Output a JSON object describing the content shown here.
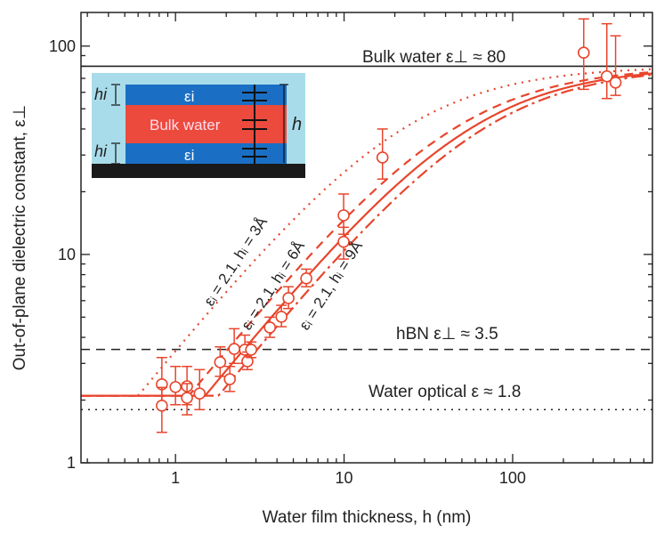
{
  "chart_data": {
    "type": "scatter",
    "xlabel": "Water film thickness, h (nm)",
    "ylabel": "Out-of-plane dielectric constant, ε⊥",
    "xscale": "log",
    "yscale": "log",
    "xlim": [
      0.275,
      675
    ],
    "ylim": [
      1,
      145
    ],
    "xticks": [
      {
        "v": 1,
        "label": "1"
      },
      {
        "v": 10,
        "label": "10"
      },
      {
        "v": 100,
        "label": "100"
      }
    ],
    "yticks": [
      {
        "v": 1,
        "label": "1"
      },
      {
        "v": 10,
        "label": "10"
      },
      {
        "v": 100,
        "label": "100"
      }
    ],
    "color": "#e8452c",
    "points": [
      {
        "x": 0.83,
        "y": 2.38,
        "err": [
          1.9,
          3.2
        ]
      },
      {
        "x": 0.83,
        "y": 1.88,
        "err": [
          1.4,
          2.3
        ]
      },
      {
        "x": 1.0,
        "y": 2.31,
        "err": [
          1.9,
          2.9
        ]
      },
      {
        "x": 1.17,
        "y": 2.33,
        "err": [
          1.9,
          2.9
        ]
      },
      {
        "x": 1.17,
        "y": 2.05,
        "err": [
          1.7,
          2.4
        ]
      },
      {
        "x": 1.39,
        "y": 2.15,
        "err": [
          1.8,
          2.8
        ]
      },
      {
        "x": 1.84,
        "y": 3.04,
        "err": [
          2.6,
          3.6
        ]
      },
      {
        "x": 2.1,
        "y": 2.52,
        "err": [
          2.2,
          2.9
        ]
      },
      {
        "x": 2.23,
        "y": 3.52,
        "err": [
          3.0,
          4.4
        ]
      },
      {
        "x": 2.58,
        "y": 3.49,
        "err": [
          3.0,
          4.1
        ]
      },
      {
        "x": 2.67,
        "y": 3.07,
        "err": [
          2.8,
          3.4
        ]
      },
      {
        "x": 2.81,
        "y": 3.49,
        "err": [
          3.2,
          3.8
        ]
      },
      {
        "x": 3.63,
        "y": 4.46,
        "err": [
          4.0,
          5.0
        ]
      },
      {
        "x": 4.25,
        "y": 5.02,
        "err": [
          4.5,
          5.7
        ]
      },
      {
        "x": 4.68,
        "y": 6.17,
        "err": [
          5.5,
          7.0
        ]
      },
      {
        "x": 5.97,
        "y": 7.67,
        "err": [
          7.0,
          8.5
        ]
      },
      {
        "x": 9.94,
        "y": 11.5,
        "err": [
          9.5,
          13.5
        ]
      },
      {
        "x": 9.94,
        "y": 15.4,
        "err": [
          12.5,
          19.5
        ]
      },
      {
        "x": 16.9,
        "y": 29.2,
        "err": [
          23,
          40
        ]
      },
      {
        "x": 264,
        "y": 93,
        "err": [
          62,
          135
        ]
      },
      {
        "x": 362,
        "y": 71.6,
        "err": [
          56,
          128
        ]
      },
      {
        "x": 408,
        "y": 66.8,
        "err": [
          58,
          112
        ]
      }
    ],
    "models": [
      {
        "name": "εᵢ = 2.1, hᵢ = 3Å",
        "style": "dotted",
        "eps_i": 2.1,
        "h_i": 0.3
      },
      {
        "name": "εᵢ = 2.1, hᵢ = 6Å",
        "style": "dashed",
        "eps_i": 2.1,
        "h_i": 0.6
      },
      {
        "name": "εᵢ = 2.1, hᵢ = 9Å",
        "style": "dashdot",
        "eps_i": 2.1,
        "h_i": 0.9
      },
      {
        "name": "fit",
        "style": "solid",
        "eps_i": 2.1,
        "h_i": 0.75
      }
    ],
    "eps_bulk": 80,
    "reference_lines": [
      {
        "label": "Bulk water ε⊥ ≈ 80",
        "y": 80,
        "style": "solid"
      },
      {
        "label": "hBN ε⊥ ≈ 3.5",
        "y": 3.5,
        "style": "dashed"
      },
      {
        "label": "Water optical ε ≈ 1.8",
        "y": 1.8,
        "style": "dotted"
      }
    ],
    "inset": {
      "layer_top": "εi",
      "middle": "Bulk water",
      "layer_bottom": "εi",
      "hi_top": "hi",
      "hi_bottom": "hi",
      "h": "h",
      "colors": {
        "bg": "#a9dcea",
        "layer": "#1a6fc4",
        "bulk": "#ec4a3c",
        "substrate": "#1a1a1a"
      }
    }
  }
}
